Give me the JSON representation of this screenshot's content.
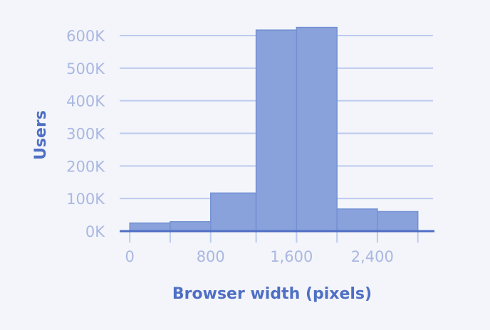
{
  "chart_data": {
    "type": "bar",
    "title": "",
    "xlabel": "Browser width (pixels)",
    "ylabel": "Users",
    "x_ticks": [
      0,
      800,
      1600,
      2400
    ],
    "x_tick_labels": [
      "0",
      "800",
      "1,600",
      "2,400"
    ],
    "y_ticks": [
      0,
      100000,
      200000,
      300000,
      400000,
      500000,
      600000
    ],
    "y_tick_labels": [
      "0K",
      "100K",
      "200K",
      "300K",
      "400K",
      "500K",
      "600K"
    ],
    "xlim": [
      -100,
      3000
    ],
    "ylim": [
      0,
      600000
    ],
    "grid": true,
    "bins": [
      {
        "start": 0,
        "end": 400,
        "value": 25000
      },
      {
        "start": 400,
        "end": 800,
        "value": 29000
      },
      {
        "start": 800,
        "end": 1250,
        "value": 117000
      },
      {
        "start": 1250,
        "end": 1650,
        "value": 617000
      },
      {
        "start": 1650,
        "end": 2050,
        "value": 625000
      },
      {
        "start": 2050,
        "end": 2450,
        "value": 68000
      },
      {
        "start": 2450,
        "end": 2850,
        "value": 60000
      }
    ],
    "colors": {
      "bar_fill": "#8aa2dc",
      "bar_stroke": "#7390d2",
      "grid": "#bccbee",
      "baseline": "#4e6fc4",
      "tick_label": "#a9b8e3",
      "axis_title": "#4e6fc4"
    }
  }
}
